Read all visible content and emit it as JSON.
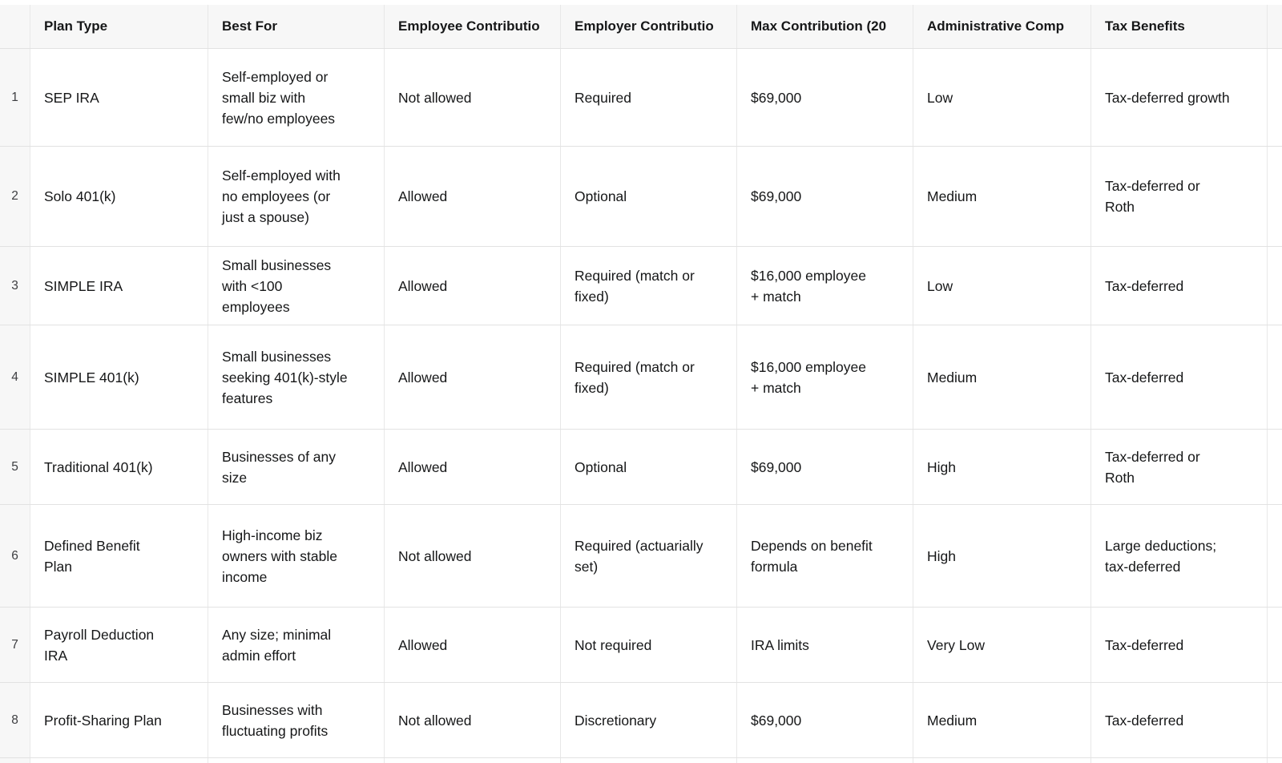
{
  "header": {
    "columns": [
      "Plan Type",
      "Best For",
      "Employee Contributio",
      "Employer Contributio",
      "Max Contribution (20",
      "Administrative Comp",
      "Tax Benefits"
    ]
  },
  "rows": [
    {
      "num": "1",
      "plan_type": "SEP IRA",
      "best_for": "Self-employed or small biz with few/no employees",
      "employee_contribution": "Not allowed",
      "employer_contribution": "Required",
      "max_contribution": "$69,000",
      "admin_complexity": "Low",
      "tax_benefits": "Tax-deferred growth"
    },
    {
      "num": "2",
      "plan_type": "Solo 401(k)",
      "best_for": "Self-employed with no employees (or just a spouse)",
      "employee_contribution": "Allowed",
      "employer_contribution": "Optional",
      "max_contribution": "$69,000",
      "admin_complexity": "Medium",
      "tax_benefits": "Tax-deferred or Roth"
    },
    {
      "num": "3",
      "plan_type": "SIMPLE IRA",
      "best_for": "Small businesses with <100 employees",
      "employee_contribution": "Allowed",
      "employer_contribution": "Required (match or fixed)",
      "max_contribution": "$16,000 employee + match",
      "admin_complexity": "Low",
      "tax_benefits": "Tax-deferred"
    },
    {
      "num": "4",
      "plan_type": "SIMPLE 401(k)",
      "best_for": "Small businesses seeking 401(k)-style features",
      "employee_contribution": "Allowed",
      "employer_contribution": "Required (match or fixed)",
      "max_contribution": "$16,000 employee + match",
      "admin_complexity": "Medium",
      "tax_benefits": "Tax-deferred"
    },
    {
      "num": "5",
      "plan_type": "Traditional 401(k)",
      "best_for": "Businesses of any size",
      "employee_contribution": "Allowed",
      "employer_contribution": "Optional",
      "max_contribution": "$69,000",
      "admin_complexity": "High",
      "tax_benefits": "Tax-deferred or Roth"
    },
    {
      "num": "6",
      "plan_type": "Defined Benefit Plan",
      "best_for": "High-income biz owners with stable income",
      "employee_contribution": "Not allowed",
      "employer_contribution": "Required (actuarially set)",
      "max_contribution": "Depends on benefit formula",
      "admin_complexity": "High",
      "tax_benefits": "Large deductions; tax-deferred"
    },
    {
      "num": "7",
      "plan_type": "Payroll Deduction IRA",
      "best_for": "Any size; minimal admin effort",
      "employee_contribution": "Allowed",
      "employer_contribution": "Not required",
      "max_contribution": "IRA limits",
      "admin_complexity": "Very Low",
      "tax_benefits": "Tax-deferred"
    },
    {
      "num": "8",
      "plan_type": "Profit-Sharing Plan",
      "best_for": "Businesses with fluctuating profits",
      "employee_contribution": "Not allowed",
      "employer_contribution": "Discretionary",
      "max_contribution": "$69,000",
      "admin_complexity": "Medium",
      "tax_benefits": "Tax-deferred"
    }
  ],
  "colors": {
    "header_bg": "#f7f7f7",
    "row_bg": "#ffffff",
    "grid_line_h": "#e2e2e2",
    "grid_line_v": "#e8e8e8",
    "text": "#161718",
    "muted_number": "#3c3d40"
  }
}
